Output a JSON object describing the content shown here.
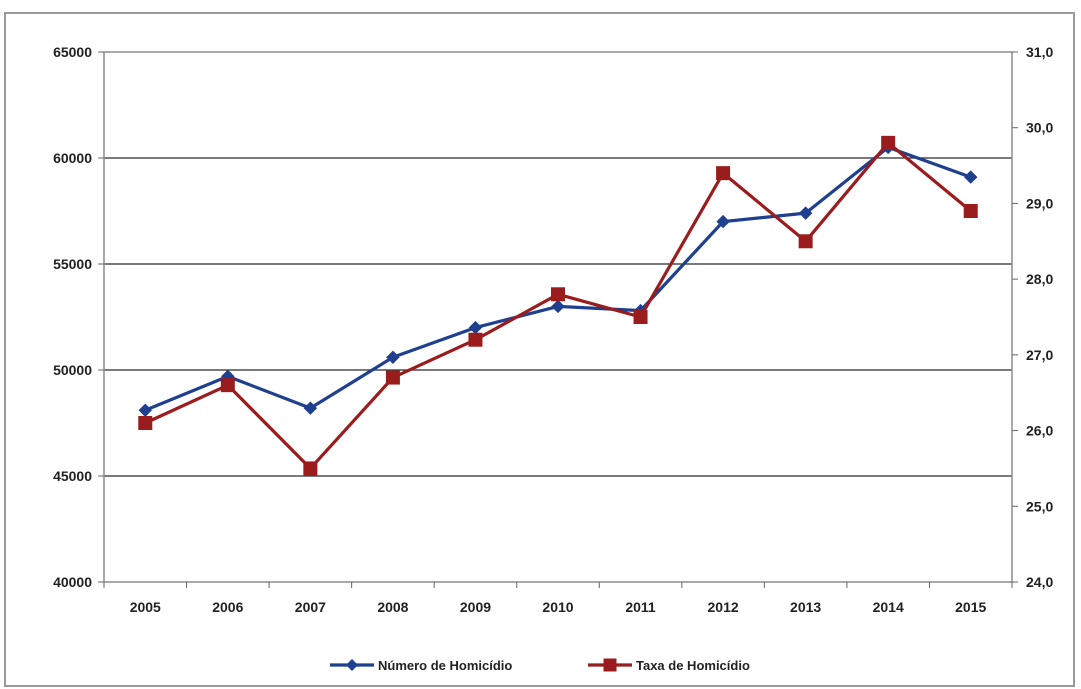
{
  "chart_data": {
    "type": "line",
    "title": "",
    "xlabel": "",
    "ylabel": "",
    "categories": [
      "2005",
      "2006",
      "2007",
      "2008",
      "2009",
      "2010",
      "2011",
      "2012",
      "2013",
      "2014",
      "2015"
    ],
    "y_left": {
      "min": 40000,
      "max": 65000,
      "ticks": [
        "40000",
        "45000",
        "50000",
        "55000",
        "60000",
        "65000"
      ]
    },
    "y_right": {
      "min": 24.0,
      "max": 31.0,
      "ticks": [
        "24,0",
        "25,0",
        "26,0",
        "27,0",
        "28,0",
        "29,0",
        "30,0",
        "31,0"
      ]
    },
    "gridlines": [
      45000,
      50000,
      55000,
      60000
    ],
    "legend_position": "bottom",
    "series": [
      {
        "name": "Número de Homicídio",
        "axis": "left",
        "color": "#1f3f8f",
        "marker": "diamond",
        "values": [
          48100,
          49700,
          48200,
          50600,
          52000,
          53000,
          52800,
          57000,
          57400,
          60500,
          59100
        ]
      },
      {
        "name": "Taxa de Homicídio",
        "axis": "right",
        "color": "#9b1c1c",
        "marker": "square",
        "values": [
          26.1,
          26.6,
          25.5,
          26.7,
          27.2,
          27.8,
          27.5,
          29.4,
          28.5,
          29.8,
          28.9
        ]
      }
    ]
  }
}
